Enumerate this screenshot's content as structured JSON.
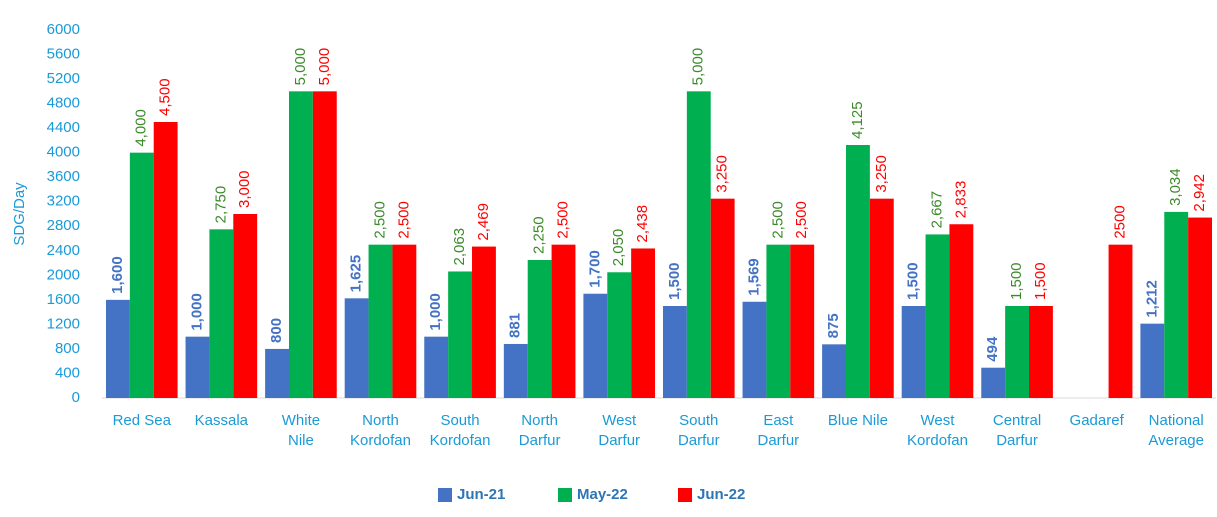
{
  "chart_data": {
    "type": "bar",
    "y_axis_label": "SDG/Day",
    "categories": [
      "Red Sea",
      "Kassala",
      "White\nNile",
      "North\nKordofan",
      "South\nKordofan",
      "North\nDarfur",
      "West\nDarfur",
      "South\nDarfur",
      "East\nDarfur",
      "Blue Nile",
      "West\nKordofan",
      "Central\nDarfur",
      "Gadaref",
      "National\nAverage"
    ],
    "series": [
      {
        "name": "Jun-21",
        "color": "#4472c4",
        "label_color": "#4472c4",
        "values": [
          1600,
          1000,
          800,
          1625,
          1000,
          881,
          1700,
          1500,
          1569,
          875,
          1500,
          494,
          null,
          1212
        ],
        "value_labels": [
          "1,600",
          "1,000",
          "800",
          "1,625",
          "1,000",
          "881",
          "1,700",
          "1,500",
          "1,569",
          "875",
          "1,500",
          "494",
          null,
          "1,212"
        ]
      },
      {
        "name": "May-22",
        "color": "#00b050",
        "label_color": "#3b8a2a",
        "values": [
          4000,
          2750,
          5000,
          2500,
          2063,
          2250,
          2050,
          5000,
          2500,
          4125,
          2667,
          1500,
          null,
          3034
        ],
        "value_labels": [
          "4,000",
          "2,750",
          "5,000",
          "2,500",
          "2,063",
          "2,250",
          "2,050",
          "5,000",
          "2,500",
          "4,125",
          "2,667",
          "1,500",
          null,
          "3,034"
        ]
      },
      {
        "name": "Jun-22",
        "color": "#ff0000",
        "label_color": "#ff0000",
        "values": [
          4500,
          3000,
          5000,
          2500,
          2469,
          2500,
          2438,
          3250,
          2500,
          3250,
          2833,
          1500,
          2500,
          2942
        ],
        "value_labels": [
          "4,500",
          "3,000",
          "5,000",
          "2,500",
          "2,469",
          "2,500",
          "2,438",
          "3,250",
          "2,500",
          "3,250",
          "2,833",
          "1,500",
          "2500",
          "2,942"
        ]
      }
    ],
    "ylim": [
      0,
      6000
    ],
    "yticks": [
      0,
      400,
      800,
      1200,
      1600,
      2000,
      2400,
      2800,
      3200,
      3600,
      4000,
      4400,
      4800,
      5200,
      5600,
      6000
    ],
    "grid": false,
    "legend": "bottom"
  }
}
